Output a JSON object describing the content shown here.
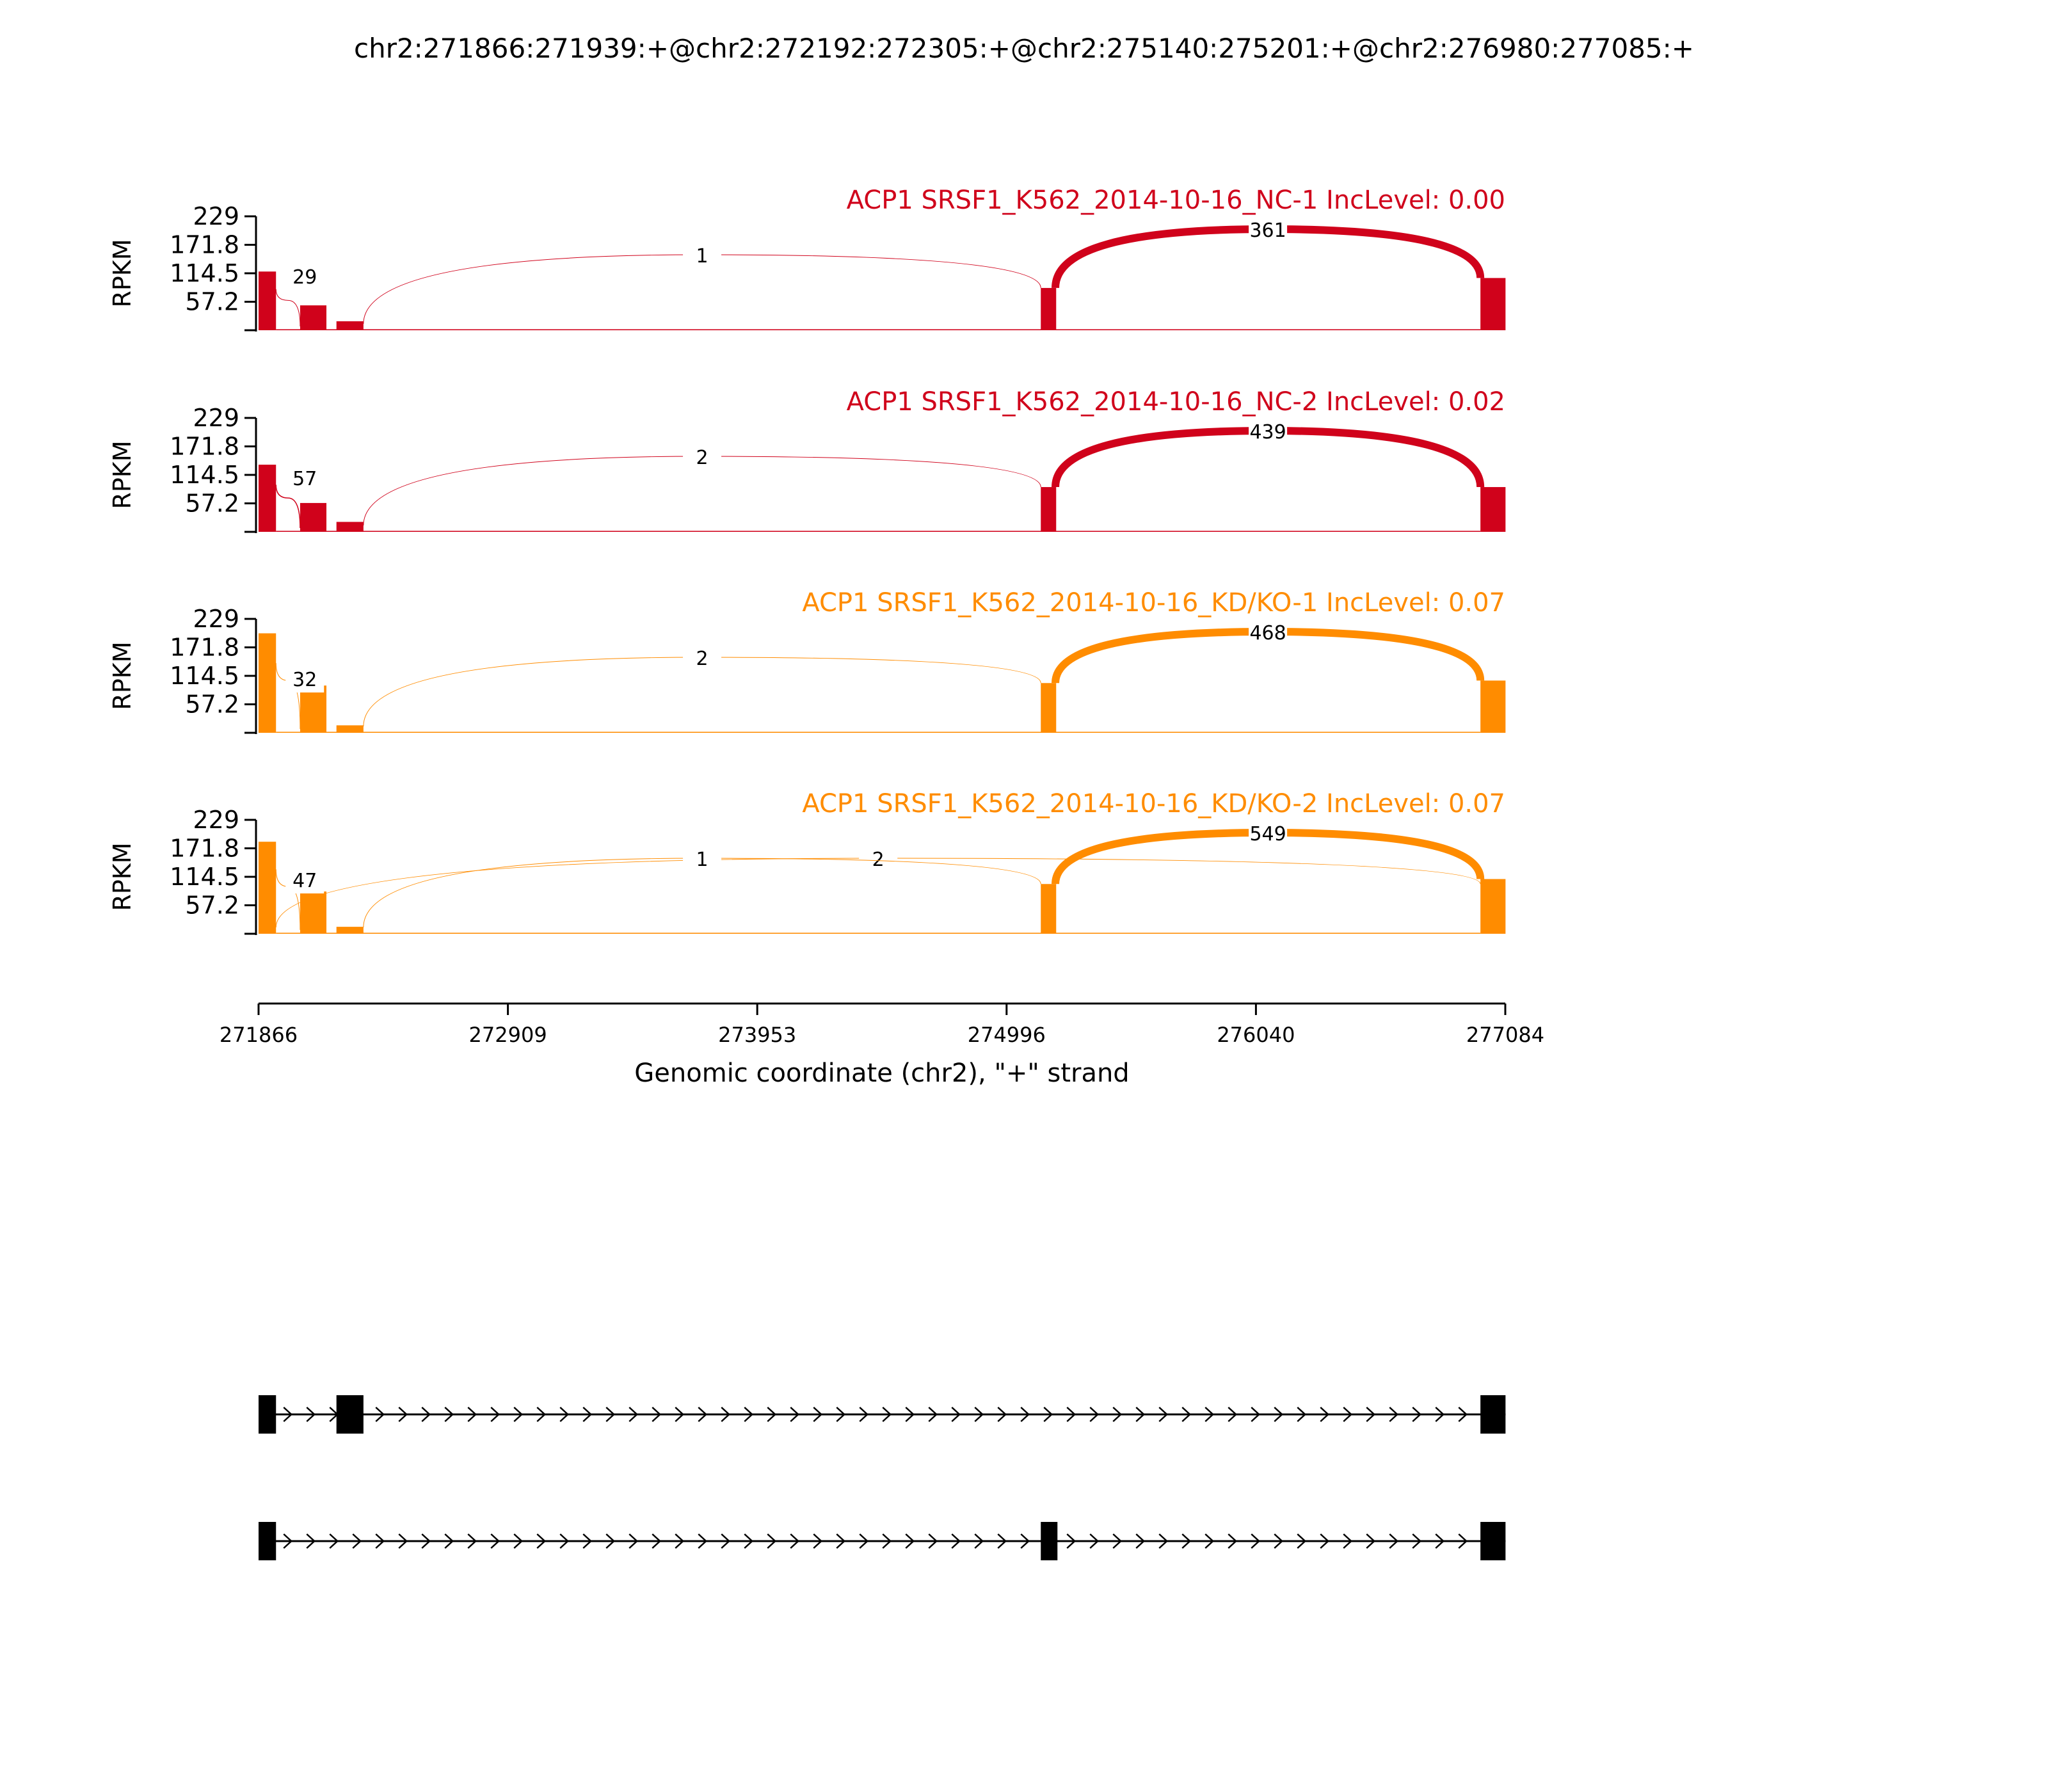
{
  "title": "chr2:271866:271939:+@chr2:272192:272305:+@chr2:275140:275201:+@chr2:276980:277085:+",
  "colors": {
    "nc": "#d0021b",
    "kd": "#ff8c00",
    "axis": "#000000",
    "gene": "#000000"
  },
  "chart_data": {
    "type": "area",
    "ylabel": "RPKM",
    "yticks": [
      "229",
      "171.8",
      "114.5",
      "57.2"
    ],
    "ylim": [
      0,
      229
    ],
    "xlabel": "Genomic coordinate (chr2), \"+\" strand",
    "xticks": [
      "271866",
      "272909",
      "273953",
      "274996",
      "276040",
      "277084"
    ],
    "xlim": [
      271866,
      277084
    ],
    "exons": [
      [
        271866,
        271939
      ],
      [
        272040,
        272150
      ],
      [
        272192,
        272305
      ],
      [
        275140,
        275201
      ],
      [
        276980,
        277085
      ]
    ],
    "samples": [
      {
        "name": "ACP1 SRSF1_K562_2014-10-16_NC-1 IncLevel: 0.00",
        "group": "nc",
        "exon_levels": [
          118,
          50,
          18,
          85,
          105
        ],
        "intron_level": 2,
        "junctions": [
          {
            "label": "29",
            "start": 271939,
            "end": 272040,
            "count": 29
          },
          {
            "label": "1",
            "start": 272305,
            "end": 275140,
            "count": 1
          },
          {
            "label": "361",
            "start": 275201,
            "end": 276980,
            "count": 361
          }
        ]
      },
      {
        "name": "ACP1 SRSF1_K562_2014-10-16_NC-2 IncLevel: 0.02",
        "group": "nc",
        "exon_levels": [
          135,
          58,
          20,
          90,
          90
        ],
        "intron_level": 2,
        "junctions": [
          {
            "label": "57",
            "start": 271939,
            "end": 272040,
            "count": 57
          },
          {
            "label": "2",
            "start": 272305,
            "end": 275140,
            "count": 2
          },
          {
            "label": "439",
            "start": 275201,
            "end": 276980,
            "count": 439
          }
        ]
      },
      {
        "name": "ACP1 SRSF1_K562_2014-10-16_KD/KO-1 IncLevel: 0.07",
        "group": "kd",
        "exon_levels": [
          200,
          95,
          15,
          100,
          105
        ],
        "intron_level": 2,
        "junctions": [
          {
            "label": "32",
            "start": 271939,
            "end": 272040,
            "count": 32
          },
          {
            "label": "2",
            "start": 272305,
            "end": 275140,
            "count": 2
          },
          {
            "label": "468",
            "start": 275201,
            "end": 276980,
            "count": 468
          }
        ]
      },
      {
        "name": "ACP1 SRSF1_K562_2014-10-16_KD/KO-2 IncLevel: 0.07",
        "group": "kd",
        "exon_levels": [
          185,
          85,
          14,
          100,
          110
        ],
        "intron_level": 2,
        "junctions": [
          {
            "label": "47",
            "start": 271939,
            "end": 272040,
            "count": 47
          },
          {
            "label": "2",
            "start": 271939,
            "end": 276980,
            "count": 2
          },
          {
            "label": "1",
            "start": 272305,
            "end": 275140,
            "count": 1
          },
          {
            "label": "549",
            "start": 275201,
            "end": 276980,
            "count": 549
          }
        ]
      }
    ],
    "isoforms": [
      [
        [
          271866,
          271939
        ],
        [
          272192,
          272305
        ],
        [
          276980,
          277085
        ]
      ],
      [
        [
          271866,
          271939
        ],
        [
          275140,
          275201
        ],
        [
          276980,
          277085
        ]
      ]
    ]
  }
}
